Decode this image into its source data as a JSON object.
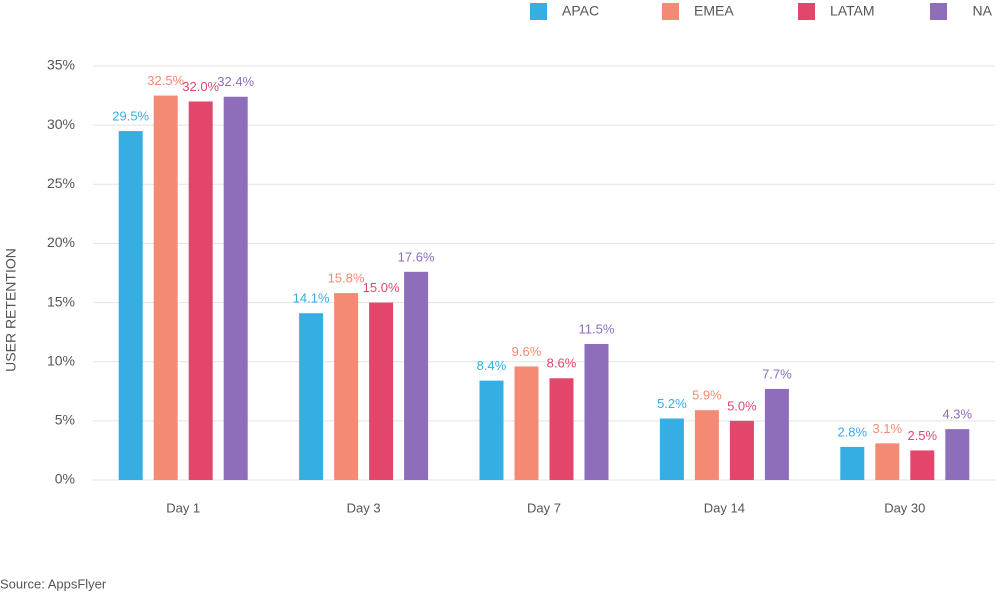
{
  "chart_data": {
    "type": "bar",
    "y_label": "USER RETENTION",
    "source": "Source: AppsFlyer",
    "categories": [
      "Day 1",
      "Day 3",
      "Day 7",
      "Day 14",
      "Day 30"
    ],
    "series": [
      {
        "name": "APAC",
        "color": "#36aee3",
        "values": [
          29.5,
          14.1,
          8.4,
          5.2,
          2.8
        ],
        "value_labels": [
          "29.5%",
          "14.1%",
          "8.4%",
          "5.2%",
          "2.8%"
        ]
      },
      {
        "name": "EMEA",
        "color": "#f48a73",
        "values": [
          32.5,
          15.8,
          9.6,
          5.9,
          3.1
        ],
        "value_labels": [
          "32.5%",
          "15.8%",
          "9.6%",
          "5.9%",
          "3.1%"
        ]
      },
      {
        "name": "LATAM",
        "color": "#e2476b",
        "values": [
          32.0,
          15.0,
          8.6,
          5.0,
          2.5
        ],
        "value_labels": [
          "32.0%",
          "15.0%",
          "8.6%",
          "5.0%",
          "2.5%"
        ]
      },
      {
        "name": "NA",
        "color": "#8e6dbb",
        "values": [
          32.4,
          17.6,
          11.5,
          7.7,
          4.3
        ],
        "value_labels": [
          "32.4%",
          "17.6%",
          "11.5%",
          "7.7%",
          "4.3%"
        ]
      }
    ],
    "ylim": [
      0,
      35
    ],
    "yticks": [
      {
        "value": 0,
        "label": "0%"
      },
      {
        "value": 5,
        "label": "5%"
      },
      {
        "value": 10,
        "label": "10%"
      },
      {
        "value": 15,
        "label": "15%"
      },
      {
        "value": 20,
        "label": "20%"
      },
      {
        "value": 25,
        "label": "25%"
      },
      {
        "value": 30,
        "label": "30%"
      },
      {
        "value": 35,
        "label": "35%"
      }
    ],
    "grid": true,
    "legend_position": "top-right"
  }
}
